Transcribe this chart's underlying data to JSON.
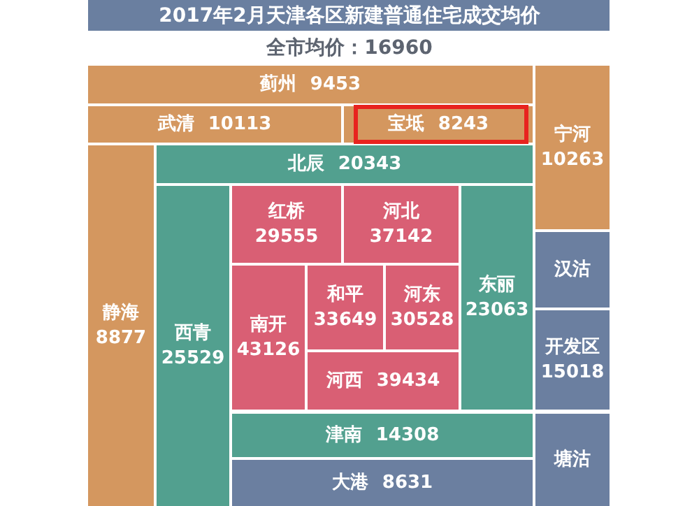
{
  "chart_data": {
    "type": "other",
    "data_labels": true,
    "title": "2017年2月天津各区新建普通住宅成交均价",
    "subtitle": "全市均价：16960",
    "categories": [
      "蓟州",
      "武清",
      "宝坻",
      "宁河",
      "静海",
      "北辰",
      "西青",
      "红桥",
      "河北",
      "南开",
      "和平",
      "河东",
      "河西",
      "东丽",
      "津南",
      "汉沽",
      "开发区",
      "塘沽",
      "大港"
    ],
    "values": [
      9453,
      10113,
      8243,
      10263,
      8877,
      20343,
      25529,
      29555,
      37142,
      43126,
      33649,
      30528,
      39434,
      23063,
      14308,
      null,
      15018,
      null,
      8631
    ],
    "colors": [
      "#d4975f",
      "#d4975f",
      "#d4975f",
      "#d4975f",
      "#d4975f",
      "#52a08f",
      "#52a08f",
      "#d95f74",
      "#d95f74",
      "#d95f74",
      "#d95f74",
      "#d95f74",
      "#d95f74",
      "#52a08f",
      "#52a08f",
      "#6b7fa0",
      "#6b7fa0",
      "#6b7fa0",
      "#6b7fa0"
    ]
  }
}
